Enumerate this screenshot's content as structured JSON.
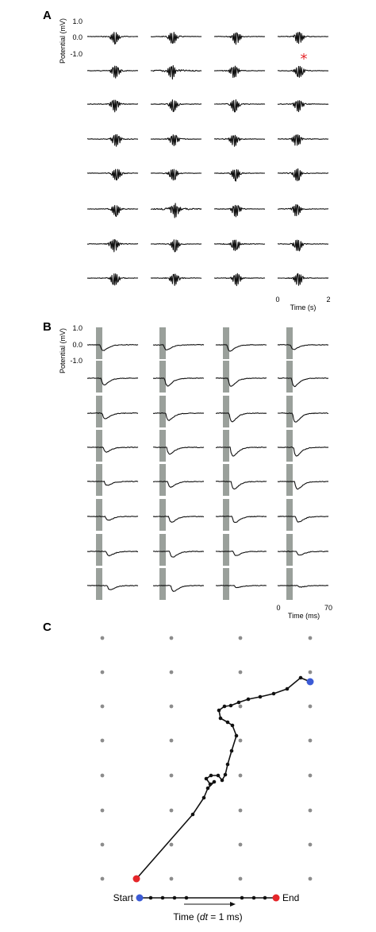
{
  "panel_a": {
    "label": "A",
    "ylabel": "Potential (mV)",
    "yticks": [
      "1.0",
      "0.0",
      "-1.0"
    ],
    "xlabel": "Time (s)",
    "xticks": [
      "0",
      "2"
    ],
    "marker": "*",
    "marker_color": "#e5262a",
    "rows": 8,
    "cols": 4
  },
  "panel_b": {
    "label": "B",
    "ylabel": "Potential (mV)",
    "yticks": [
      "1.0",
      "0.0",
      "-1.0"
    ],
    "xlabel": "Time (ms)",
    "xticks": [
      "0",
      "70"
    ],
    "bar_color": "#9aa09b",
    "rows": 8,
    "cols": 4
  },
  "panel_c": {
    "label": "C",
    "start_label": "Start",
    "end_label": "End",
    "time_label_prefix": "Time (",
    "time_label_var": "dt",
    "time_label_suffix": " = 1 ms)",
    "start_color": "#3b5bd6",
    "end_color": "#e5262a",
    "grid_color": "#8c8c8c"
  }
}
